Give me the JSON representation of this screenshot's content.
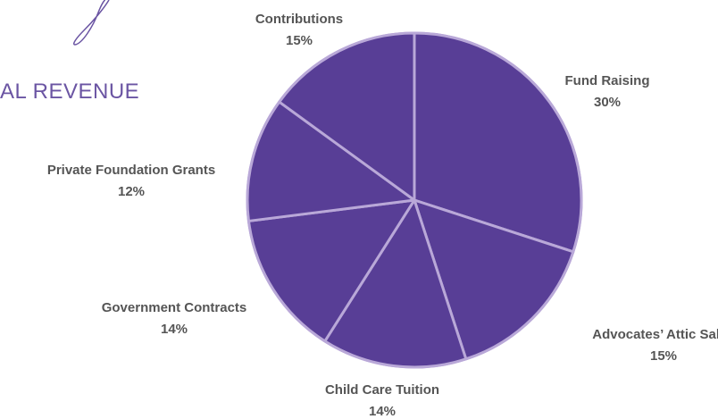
{
  "page_title": "AL REVENUE",
  "colors": {
    "slice_fill": "#583e96",
    "slice_stroke": "#b9a8d8",
    "title": "#6b55a3",
    "label": "#555555",
    "flourish": "#6b55a3"
  },
  "chart_data": {
    "type": "pie",
    "title": "",
    "start_angle_deg": 0,
    "direction": "clockwise",
    "slices": [
      {
        "label": "Fund Raising",
        "value": 30,
        "value_label": "30%"
      },
      {
        "label": "Advocates’ Attic Sales",
        "value": 15,
        "value_label": "15%"
      },
      {
        "label": "Child Care Tuition",
        "value": 14,
        "value_label": "14%"
      },
      {
        "label": "Government Contracts",
        "value": 14,
        "value_label": "14%"
      },
      {
        "label": "Private Foundation Grants",
        "value": 12,
        "value_label": "12%"
      },
      {
        "label": "Contributions",
        "value": 15,
        "value_label": "15%"
      }
    ]
  }
}
